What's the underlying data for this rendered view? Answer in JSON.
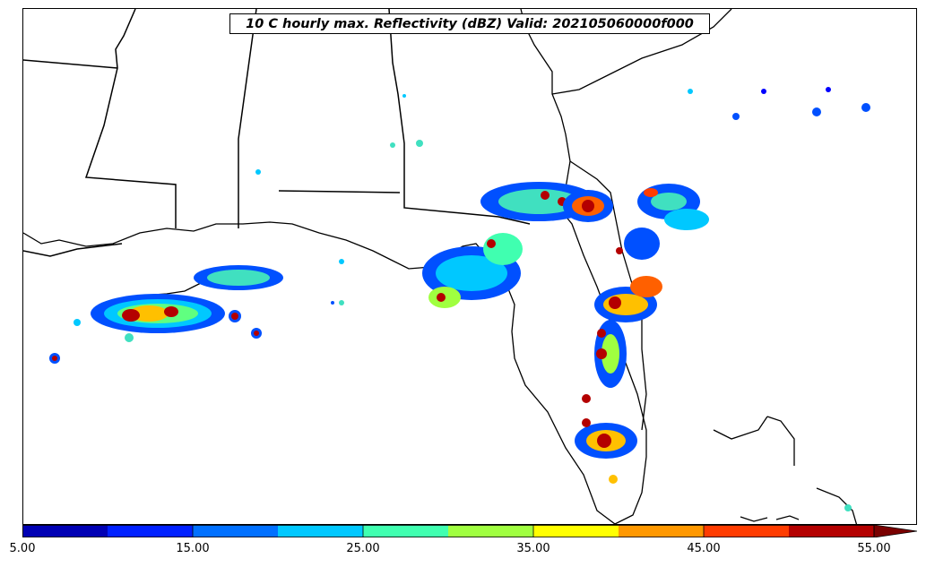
{
  "title": "10 C hourly max. Reflectivity (dBZ) Valid: 202105060000f000",
  "colorbar": {
    "colors": [
      "#0000b4",
      "#0020ff",
      "#0070ff",
      "#00c8ff",
      "#40ffb0",
      "#a0ff40",
      "#ffff00",
      "#ff9800",
      "#ff3c00",
      "#b40000"
    ],
    "extend_color": "#7a0000",
    "extend": "max",
    "tick_labels": [
      "5.00",
      "15.00",
      "25.00",
      "35.00",
      "45.00",
      "55.00"
    ]
  },
  "map": {
    "region": "US Southeast / Florida / Gulf Coast",
    "boundaries_color": "#000000",
    "reflectivity_palette": {
      "low": "#0000ff",
      "mid_low": "#00aaff",
      "mid": "#40ffb0",
      "mid_high": "#a0ff40",
      "high": "#ffcc00",
      "very_high": "#b40000"
    }
  }
}
